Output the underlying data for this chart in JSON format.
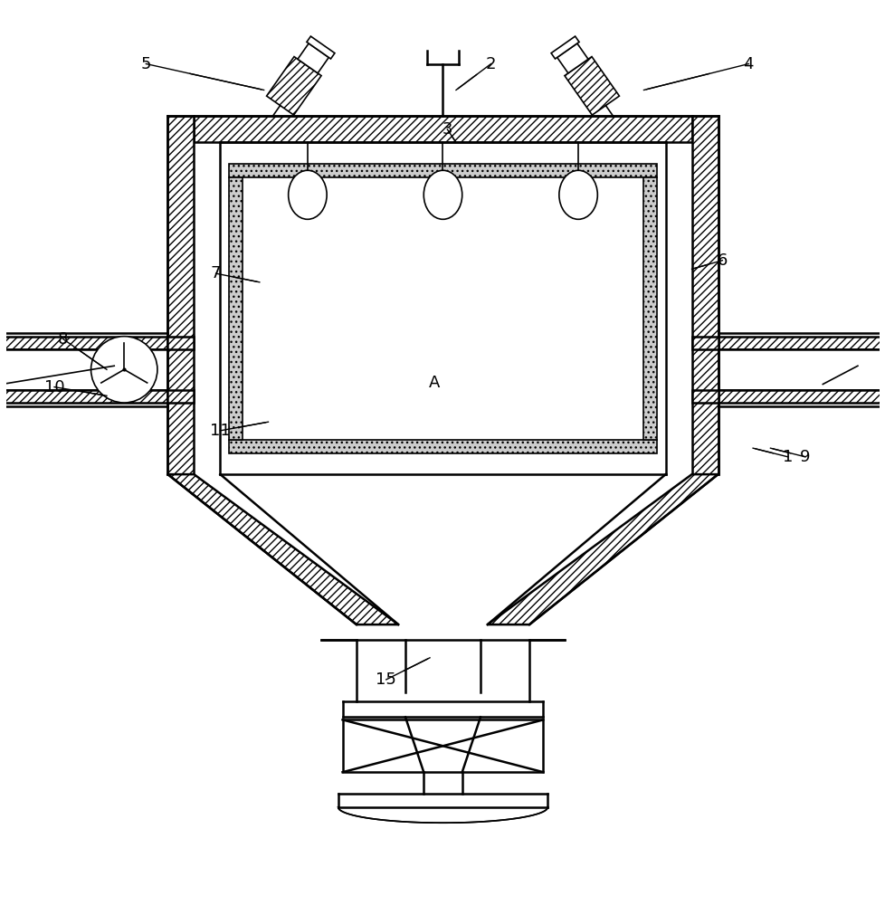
{
  "bg_color": "#ffffff",
  "line_color": "#000000",
  "figsize": [
    9.79,
    10.0
  ],
  "dpi": 100,
  "labels": {
    "1": [
      0.895,
      0.495,
      0.855,
      0.505
    ],
    "2": [
      0.555,
      0.945,
      0.515,
      0.915
    ],
    "3": [
      0.505,
      0.87,
      0.515,
      0.855
    ],
    "4": [
      0.85,
      0.945,
      0.73,
      0.915
    ],
    "5": [
      0.16,
      0.945,
      0.295,
      0.915
    ],
    "6": [
      0.82,
      0.72,
      0.785,
      0.71
    ],
    "7": [
      0.24,
      0.705,
      0.29,
      0.695
    ],
    "8": [
      0.065,
      0.63,
      0.115,
      0.595
    ],
    "9": [
      0.915,
      0.495,
      0.875,
      0.505
    ],
    "10": [
      0.055,
      0.575,
      0.115,
      0.565
    ],
    "11": [
      0.245,
      0.525,
      0.3,
      0.535
    ],
    "15": [
      0.435,
      0.24,
      0.485,
      0.265
    ],
    "A": [
      0.49,
      0.58,
      null,
      null
    ]
  }
}
